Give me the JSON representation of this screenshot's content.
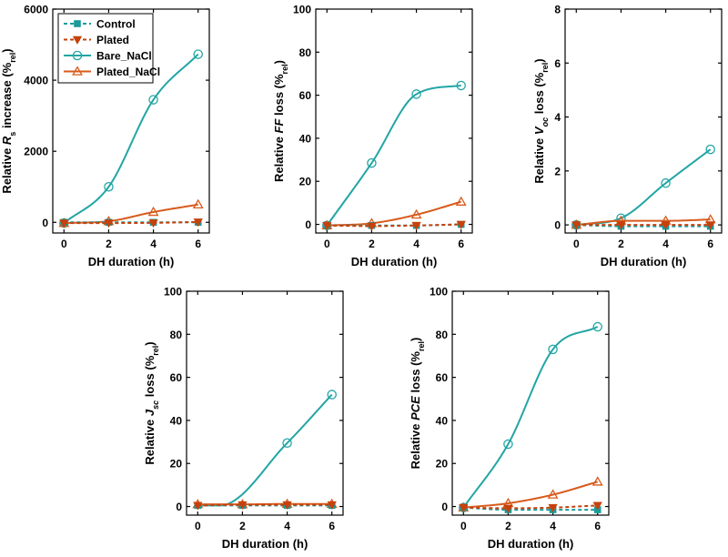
{
  "chart_data": [
    {
      "type": "line",
      "id": "rs",
      "ylabel_parts": [
        [
          "Relative ",
          ""
        ],
        [
          "R",
          "i"
        ],
        [
          "s",
          "sub"
        ],
        [
          " increase (%",
          ""
        ],
        [
          "rel",
          "sub"
        ],
        [
          ")",
          ""
        ]
      ],
      "xlabel": "DH duration (h)",
      "xlim": [
        -0.5,
        6.5
      ],
      "xticks": [
        0,
        2,
        4,
        6
      ],
      "ylim": [
        -300,
        6000
      ],
      "yticks": [
        0,
        2000,
        4000,
        6000
      ],
      "x": [
        0,
        2,
        4,
        6
      ],
      "series": [
        {
          "name": "Control",
          "values": [
            0,
            0,
            0,
            0
          ]
        },
        {
          "name": "Plated",
          "values": [
            -20,
            -20,
            -15,
            10
          ]
        },
        {
          "name": "Bare_NaCl",
          "values": [
            -20,
            1000,
            3450,
            4730
          ]
        },
        {
          "name": "Plated_NaCl",
          "values": [
            -20,
            30,
            290,
            500
          ]
        }
      ]
    },
    {
      "type": "line",
      "id": "ff",
      "ylabel_parts": [
        [
          "Relative ",
          ""
        ],
        [
          "FF",
          "i"
        ],
        [
          " loss (%",
          ""
        ],
        [
          "rel",
          "sub"
        ],
        [
          ")",
          ""
        ]
      ],
      "xlabel": "DH duration (h)",
      "xlim": [
        -0.5,
        6.5
      ],
      "xticks": [
        0,
        2,
        4,
        6
      ],
      "ylim": [
        -4,
        100
      ],
      "yticks": [
        0,
        20,
        40,
        60,
        80,
        100
      ],
      "x": [
        0,
        2,
        4,
        6
      ],
      "series": [
        {
          "name": "Control",
          "values": [
            -0.5,
            -0.5,
            -0.5,
            0
          ]
        },
        {
          "name": "Plated",
          "values": [
            -0.5,
            -0.8,
            -0.5,
            0
          ]
        },
        {
          "name": "Bare_NaCl",
          "values": [
            -0.5,
            28.5,
            60.5,
            64.5
          ]
        },
        {
          "name": "Plated_NaCl",
          "values": [
            -0.5,
            0.5,
            4.5,
            10.5
          ]
        }
      ]
    },
    {
      "type": "line",
      "id": "voc",
      "ylabel_parts": [
        [
          "Relative ",
          ""
        ],
        [
          "V",
          "i"
        ],
        [
          "oc",
          "subi"
        ],
        [
          " loss (%",
          ""
        ],
        [
          "rel",
          "sub"
        ],
        [
          ")",
          ""
        ]
      ],
      "xlabel": "DH duration (h)",
      "xlim": [
        -0.5,
        6.5
      ],
      "xticks": [
        0,
        2,
        4,
        6
      ],
      "ylim": [
        -0.3,
        8
      ],
      "yticks": [
        0,
        2,
        4,
        6,
        8
      ],
      "x": [
        0,
        2,
        4,
        6
      ],
      "series": [
        {
          "name": "Control",
          "values": [
            0,
            -0.05,
            -0.05,
            -0.05
          ]
        },
        {
          "name": "Plated",
          "values": [
            0,
            0,
            0,
            0
          ]
        },
        {
          "name": "Bare_NaCl",
          "values": [
            0,
            0.25,
            1.55,
            2.8
          ]
        },
        {
          "name": "Plated_NaCl",
          "values": [
            0,
            0.15,
            0.15,
            0.2
          ]
        }
      ]
    },
    {
      "type": "line",
      "id": "jsc",
      "ylabel_parts": [
        [
          "Relative ",
          ""
        ],
        [
          "J",
          "i"
        ],
        [
          "sc",
          "subi"
        ],
        [
          " loss (%",
          ""
        ],
        [
          "rel",
          "sub"
        ],
        [
          ")",
          ""
        ]
      ],
      "xlabel": "DH duration (h)",
      "xlim": [
        -0.5,
        6.5
      ],
      "xticks": [
        0,
        2,
        4,
        6
      ],
      "ylim": [
        -4,
        100
      ],
      "yticks": [
        0,
        20,
        40,
        60,
        80,
        100
      ],
      "x": [
        0,
        2,
        4,
        6
      ],
      "series": [
        {
          "name": "Control",
          "values": [
            0.5,
            0.5,
            0.5,
            0.5
          ]
        },
        {
          "name": "Plated",
          "values": [
            0.5,
            0.8,
            0.8,
            0.8
          ]
        },
        {
          "name": "Bare_NaCl",
          "values": [
            null,
            null,
            29.5,
            52
          ]
        },
        {
          "name": "Plated_NaCl",
          "values": [
            1,
            1,
            1.2,
            1.2
          ]
        }
      ]
    },
    {
      "type": "line",
      "id": "pce",
      "ylabel_parts": [
        [
          "Relative ",
          ""
        ],
        [
          "PCE",
          "i"
        ],
        [
          " loss (%",
          ""
        ],
        [
          "rel",
          "sub"
        ],
        [
          ")",
          ""
        ]
      ],
      "xlabel": "DH duration (h)",
      "xlim": [
        -0.5,
        6.5
      ],
      "xticks": [
        0,
        2,
        4,
        6
      ],
      "ylim": [
        -4,
        100
      ],
      "yticks": [
        0,
        20,
        40,
        60,
        80,
        100
      ],
      "x": [
        0,
        2,
        4,
        6
      ],
      "series": [
        {
          "name": "Control",
          "values": [
            -0.5,
            -1.5,
            -1.5,
            -1.5
          ]
        },
        {
          "name": "Plated",
          "values": [
            -0.5,
            -0.8,
            -0.5,
            0.5
          ]
        },
        {
          "name": "Bare_NaCl",
          "values": [
            -0.5,
            29,
            73,
            83.5
          ]
        },
        {
          "name": "Plated_NaCl",
          "values": [
            -0.5,
            1.5,
            5.5,
            11.5
          ]
        }
      ]
    }
  ],
  "legend": {
    "entries": [
      "Control",
      "Plated",
      "Bare_NaCl",
      "Plated_NaCl"
    ]
  },
  "colors": {
    "control": "#1a9a9a",
    "plated": "#c6410c",
    "bare_nacl": "#22a5a5",
    "plated_nacl": "#d85a1c"
  }
}
